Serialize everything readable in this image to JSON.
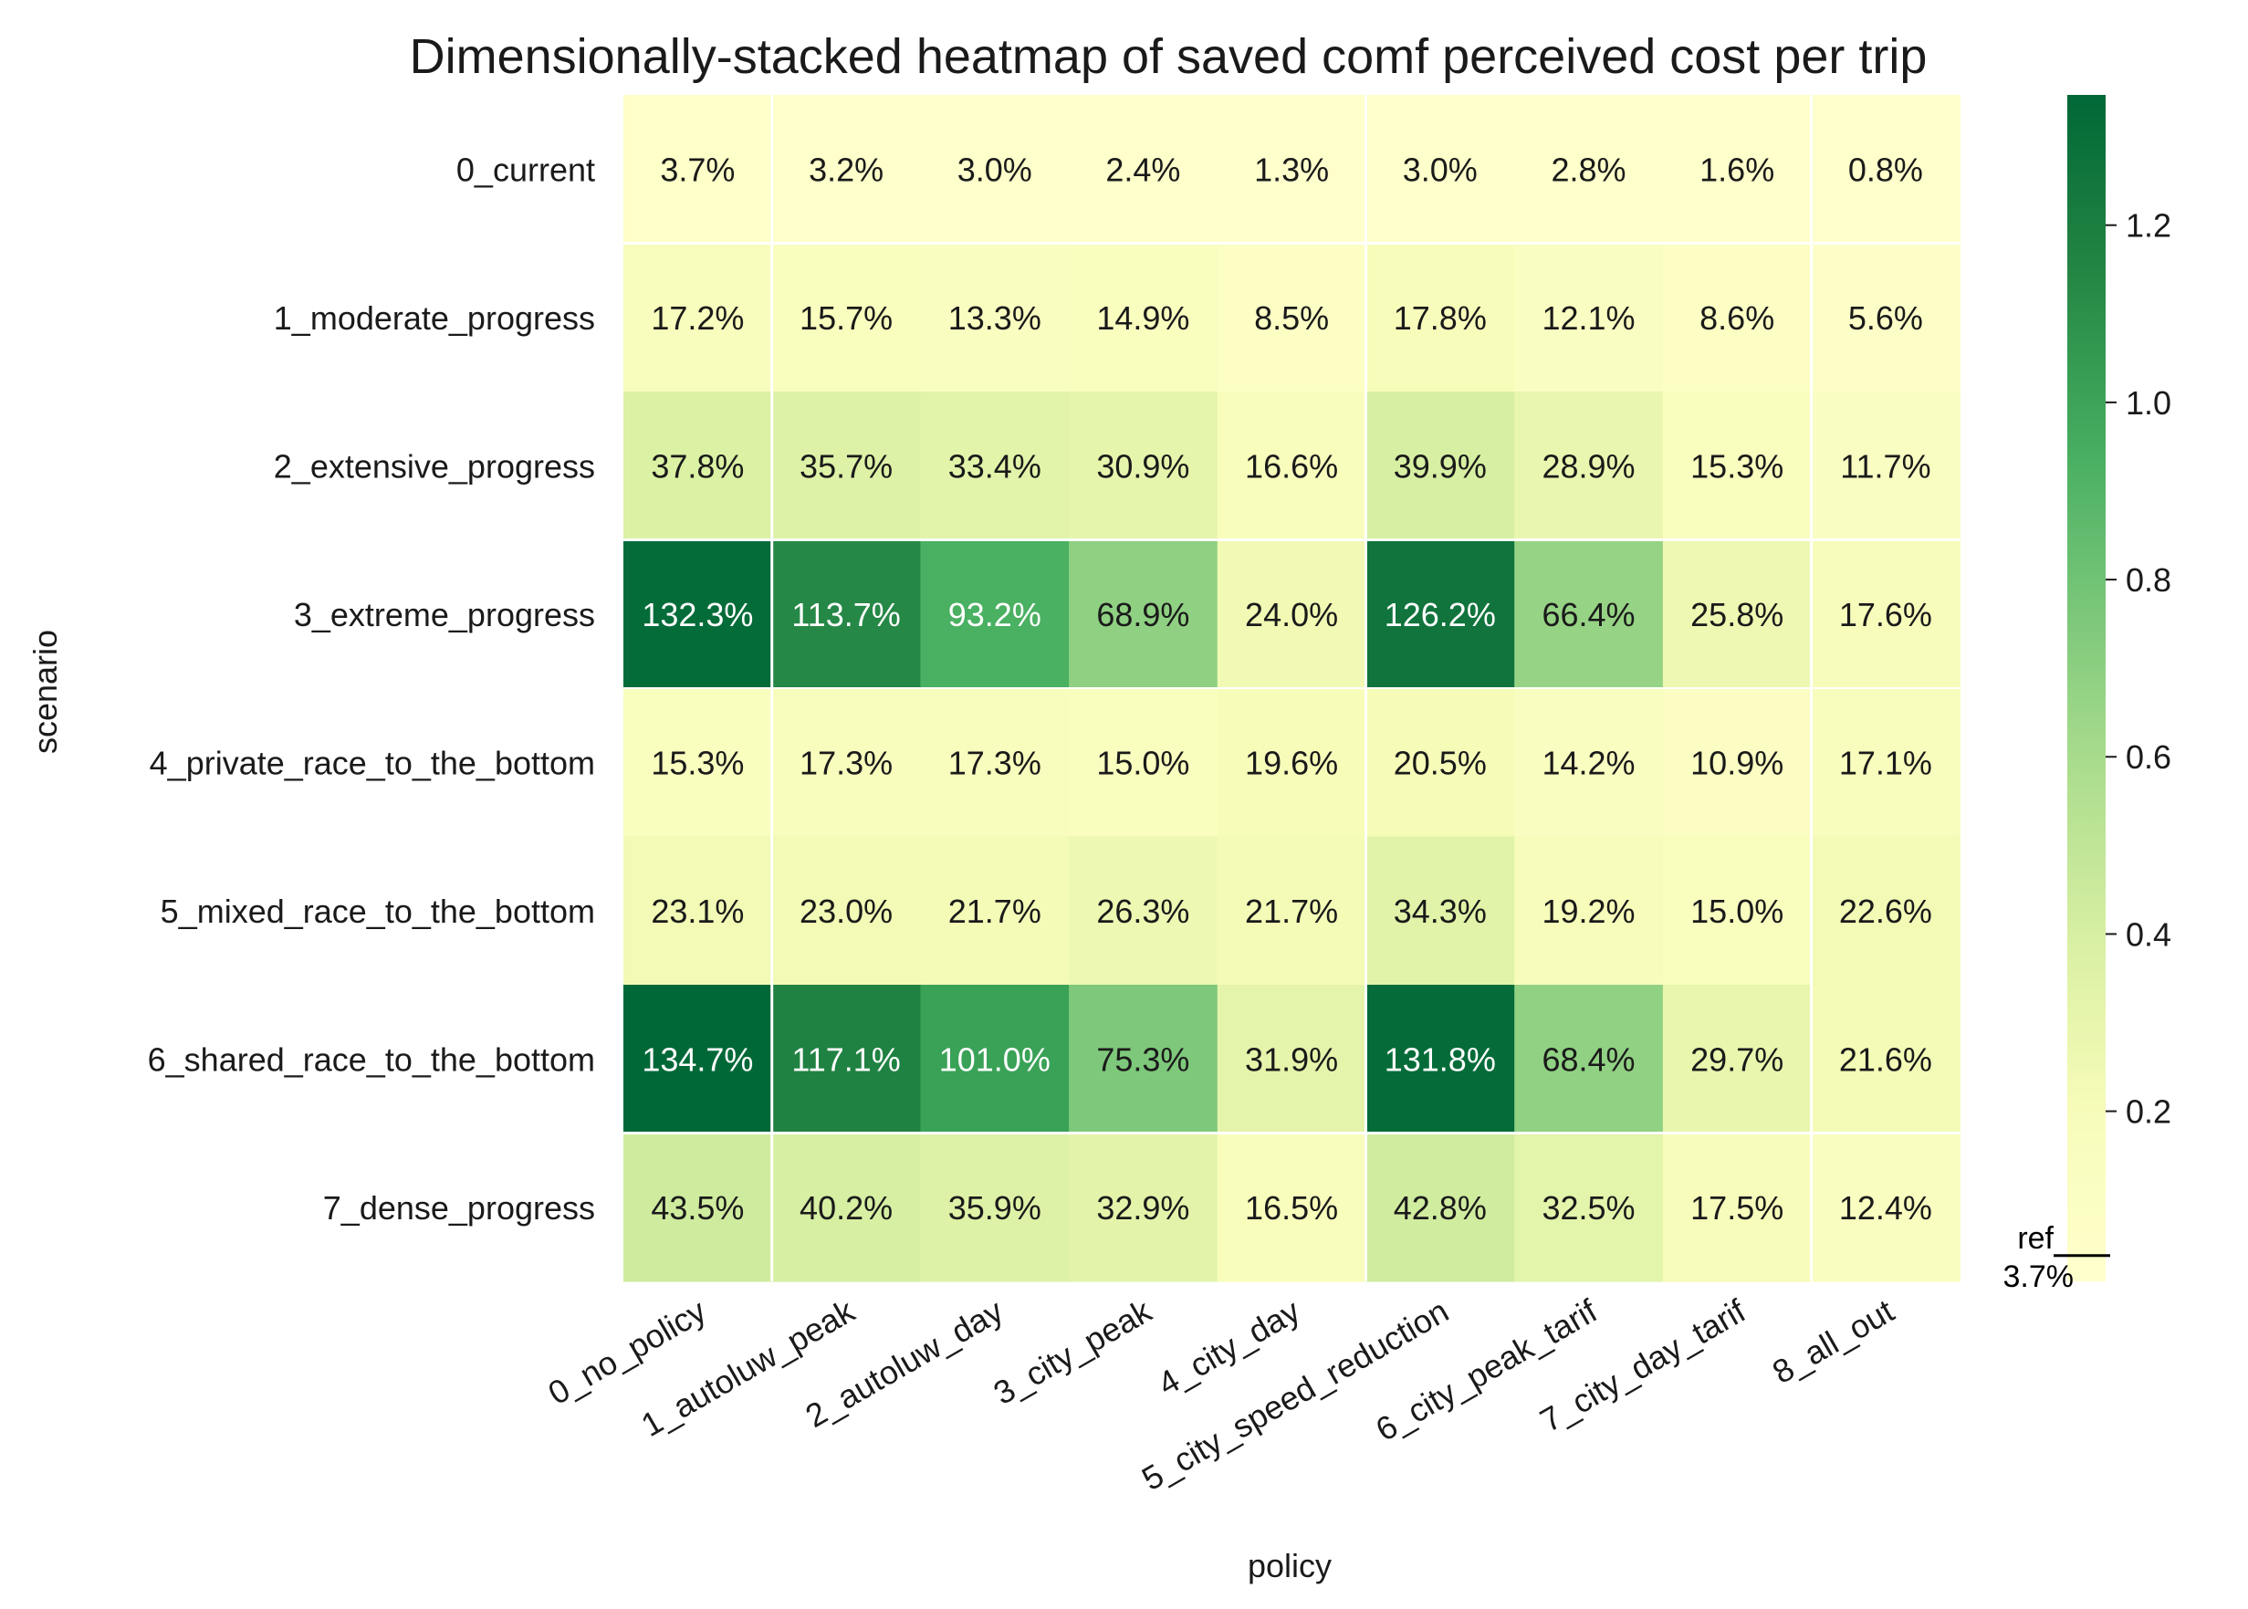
{
  "chart_data": {
    "type": "heatmap",
    "title": "Dimensionally-stacked heatmap of saved comf perceived cost per trip",
    "xlabel": "policy",
    "ylabel": "scenario",
    "x_categories": [
      "0_no_policy",
      "1_autoluw_peak",
      "2_autoluw_day",
      "3_city_peak",
      "4_city_day",
      "5_city_speed_reduction",
      "6_city_peak_tarif",
      "7_city_day_tarif",
      "8_all_out"
    ],
    "y_categories": [
      "0_current",
      "1_moderate_progress",
      "2_extensive_progress",
      "3_extreme_progress",
      "4_private_race_to_the_bottom",
      "5_mixed_race_to_the_bottom",
      "6_shared_race_to_the_bottom",
      "7_dense_progress"
    ],
    "values": [
      [
        0.037,
        0.032,
        0.03,
        0.024,
        0.013,
        0.03,
        0.028,
        0.016,
        0.008
      ],
      [
        0.172,
        0.157,
        0.133,
        0.149,
        0.085,
        0.178,
        0.121,
        0.086,
        0.056
      ],
      [
        0.378,
        0.357,
        0.334,
        0.309,
        0.166,
        0.399,
        0.289,
        0.153,
        0.117
      ],
      [
        1.323,
        1.137,
        0.932,
        0.689,
        0.24,
        1.262,
        0.664,
        0.258,
        0.176
      ],
      [
        0.153,
        0.173,
        0.173,
        0.15,
        0.196,
        0.205,
        0.142,
        0.109,
        0.171
      ],
      [
        0.231,
        0.23,
        0.217,
        0.263,
        0.217,
        0.343,
        0.192,
        0.15,
        0.226
      ],
      [
        1.347,
        1.171,
        1.01,
        0.753,
        0.319,
        1.318,
        0.684,
        0.297,
        0.216
      ],
      [
        0.435,
        0.402,
        0.359,
        0.329,
        0.165,
        0.428,
        0.325,
        0.175,
        0.124
      ]
    ],
    "cell_labels": [
      [
        "3.7%",
        "3.2%",
        "3.0%",
        "2.4%",
        "1.3%",
        "3.0%",
        "2.8%",
        "1.6%",
        "0.8%"
      ],
      [
        "17.2%",
        "15.7%",
        "13.3%",
        "14.9%",
        "8.5%",
        "17.8%",
        "12.1%",
        "8.6%",
        "5.6%"
      ],
      [
        "37.8%",
        "35.7%",
        "33.4%",
        "30.9%",
        "16.6%",
        "39.9%",
        "28.9%",
        "15.3%",
        "11.7%"
      ],
      [
        "132.3%",
        "113.7%",
        "93.2%",
        "68.9%",
        "24.0%",
        "126.2%",
        "66.4%",
        "25.8%",
        "17.6%"
      ],
      [
        "15.3%",
        "17.3%",
        "17.3%",
        "15.0%",
        "19.6%",
        "20.5%",
        "14.2%",
        "10.9%",
        "17.1%"
      ],
      [
        "23.1%",
        "23.0%",
        "21.7%",
        "26.3%",
        "21.7%",
        "34.3%",
        "19.2%",
        "15.0%",
        "22.6%"
      ],
      [
        "134.7%",
        "117.1%",
        "101.0%",
        "75.3%",
        "31.9%",
        "131.8%",
        "68.4%",
        "29.7%",
        "21.6%"
      ],
      [
        "43.5%",
        "40.2%",
        "35.9%",
        "32.9%",
        "16.5%",
        "42.8%",
        "32.5%",
        "17.5%",
        "12.4%"
      ]
    ],
    "colormap": "YlGn",
    "colorbar": {
      "range": [
        0.008,
        1.347
      ],
      "ticks": [
        0.2,
        0.4,
        0.6,
        0.8,
        1.0,
        1.2
      ],
      "tick_labels": [
        "0.2",
        "0.4",
        "0.6",
        "0.8",
        "1.0",
        "1.2"
      ],
      "ref_value": 0.037,
      "ref_label_line1": "ref",
      "ref_label_line2": "3.7%"
    },
    "grid": false,
    "block_separators": "white"
  }
}
